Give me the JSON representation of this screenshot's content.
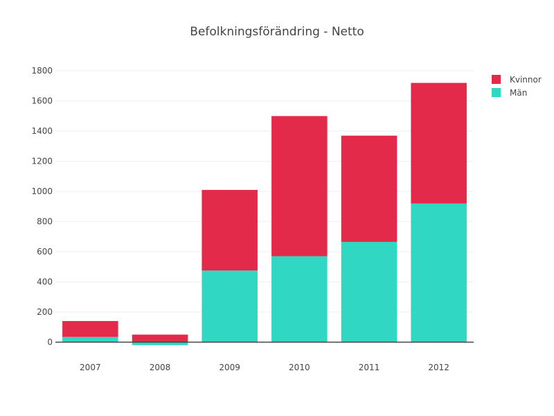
{
  "chart_data": {
    "type": "bar",
    "barmode": "stack",
    "title": "Befolkningsförändring - Netto",
    "categories": [
      "2007",
      "2008",
      "2009",
      "2010",
      "2011",
      "2012"
    ],
    "series": [
      {
        "name": "Män",
        "color": "#30d8c4",
        "values": [
          35,
          -20,
          475,
          570,
          665,
          920
        ]
      },
      {
        "name": "Kvinnor",
        "color": "#e32a4a",
        "values": [
          105,
          50,
          535,
          930,
          705,
          800
        ]
      }
    ],
    "ylim": [
      -30,
      1810
    ],
    "yticks": [
      0,
      200,
      400,
      600,
      800,
      1000,
      1200,
      1400,
      1600,
      1800
    ],
    "grid": true,
    "legend_position": "top-right",
    "legend_order": [
      "Kvinnor",
      "Män"
    ]
  }
}
